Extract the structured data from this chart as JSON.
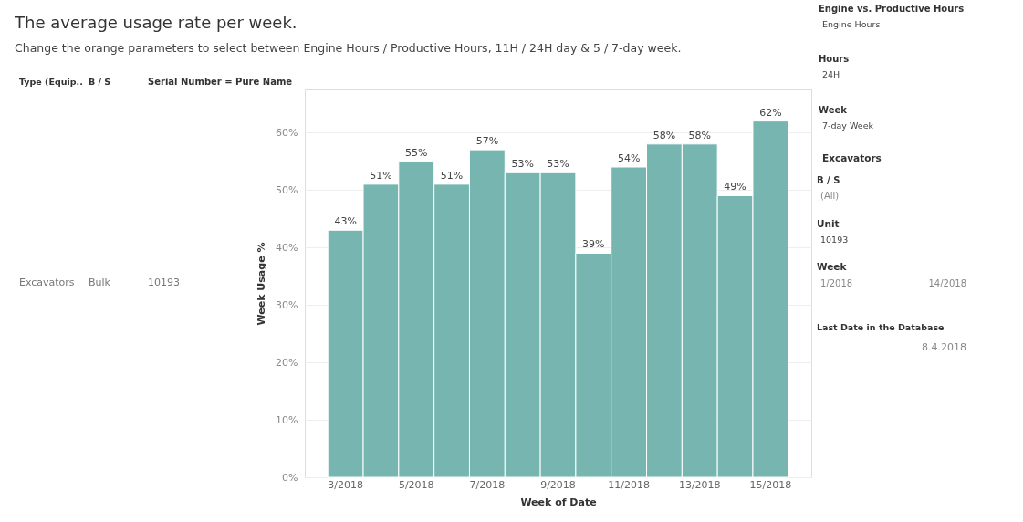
{
  "chart_data": [
    {
      "type": "other",
      "annotations": [
        "Type (Equip..",
        "B / S",
        "Serial Number = Pure Name",
        "Excavators",
        "Bulk",
        "10193"
      ]
    },
    {
      "type": "bar",
      "title": "The average usage rate per week.",
      "subtitle": "Change the orange parameters to select between Engine Hours / Productive Hours, 11H / 24H  day & 5 / 7-day week.",
      "xlabel": "Week of Date",
      "ylabel": "Week Usage %",
      "categories": [
        "3/2018",
        null,
        "5/2018",
        null,
        "7/2018",
        null,
        "9/2018",
        null,
        "11/2018",
        null,
        "13/2018",
        null,
        "15/2018"
      ],
      "values": [
        43,
        51,
        55,
        51,
        57,
        53,
        53,
        39,
        54,
        58,
        58,
        49,
        62
      ],
      "value_labels": [
        "43%",
        "51%",
        "55%",
        "51%",
        "57%",
        "53%",
        "53%",
        "39%",
        "54%",
        "58%",
        "58%",
        "49%",
        "62%"
      ],
      "color": "#76b5b0",
      "ylim": [
        0,
        67.5
      ],
      "yticks": [
        {
          "value": 0,
          "label": "0%"
        },
        {
          "value": 10,
          "label": "10%"
        },
        {
          "value": 20,
          "label": "20%"
        },
        {
          "value": 30,
          "label": "30%"
        },
        {
          "value": 40,
          "label": "40%"
        },
        {
          "value": 50,
          "label": "50%"
        },
        {
          "value": 60,
          "label": "60%"
        }
      ],
      "grid": "y"
    },
    {
      "type": "other",
      "annotations": [
        "Engine vs. Productive Hours",
        "Engine Hours",
        "Hours",
        "24H",
        "Week",
        "7-day Week",
        "Excavators",
        "B / S",
        "(All)",
        "Unit",
        "10193",
        "Week",
        "1/2018",
        "14/2018",
        "Last Date in the Database",
        "8.4.2018"
      ]
    }
  ]
}
